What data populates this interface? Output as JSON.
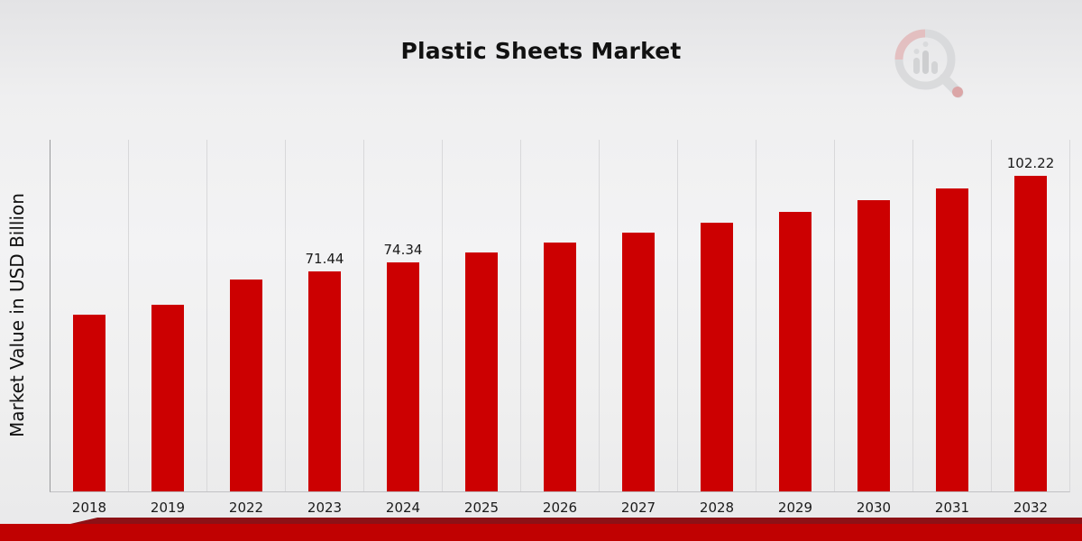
{
  "title": "Plastic Sheets Market",
  "ylabel": "Market Value in USD Billion",
  "chart_data": {
    "type": "bar",
    "title": "Plastic Sheets Market",
    "xlabel": "",
    "ylabel": "Market Value in USD Billion",
    "categories": [
      "2018",
      "2019",
      "2022",
      "2023",
      "2024",
      "2025",
      "2026",
      "2027",
      "2028",
      "2029",
      "2030",
      "2031",
      "2032"
    ],
    "values": [
      57.2,
      60.4,
      68.6,
      71.44,
      74.34,
      77.4,
      80.6,
      83.8,
      87.2,
      90.7,
      94.4,
      98.2,
      102.22
    ],
    "data_labels": [
      "",
      "",
      "",
      "71.44",
      "74.34",
      "",
      "",
      "",
      "",
      "",
      "",
      "",
      "102.22"
    ],
    "ylim": [
      0,
      114
    ],
    "grid": "vertical-only",
    "legend": "none",
    "bar_color": "#cc0001"
  },
  "branding": {
    "logo_icon": "magnifier-bar-chart-logo",
    "logo_gray": "#d7d8da",
    "logo_red": "#cc0001"
  },
  "footer": {
    "stripe_color": "#8d1116",
    "band_color": "#c00101"
  }
}
